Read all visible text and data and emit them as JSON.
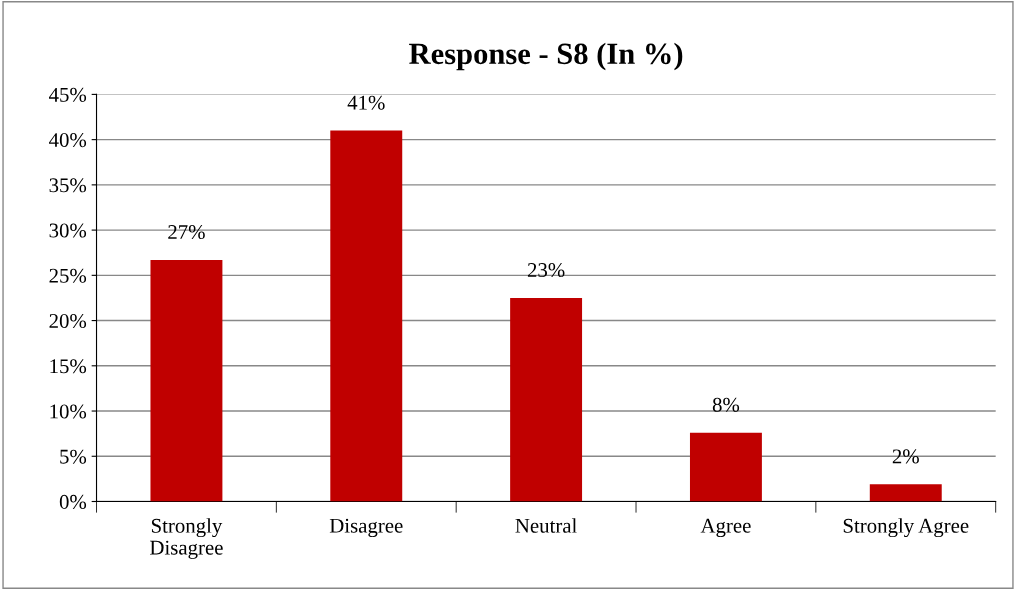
{
  "chart_data": {
    "type": "bar",
    "title": "Response - S8 (In %)",
    "categories": [
      "Strongly Disagree",
      "Disagree",
      "Neutral",
      "Agree",
      "Strongly Agree"
    ],
    "values": [
      26.7,
      41,
      22.5,
      7.6,
      1.9
    ],
    "color": "#c00000",
    "value_labels": [
      "27%",
      "41%",
      "23%",
      "8%",
      "2%"
    ],
    "ylim": [
      0,
      45
    ],
    "yticks": [
      {
        "value": 0,
        "label": "0%"
      },
      {
        "value": 5,
        "label": "5%"
      },
      {
        "value": 10,
        "label": "10%"
      },
      {
        "value": 15,
        "label": "15%"
      },
      {
        "value": 20,
        "label": "20%"
      },
      {
        "value": 25,
        "label": "25%"
      },
      {
        "value": 30,
        "label": "30%"
      },
      {
        "value": 35,
        "label": "35%"
      },
      {
        "value": 40,
        "label": "40%"
      },
      {
        "value": 45,
        "label": "45%"
      }
    ],
    "grid": "y",
    "legend": false
  }
}
